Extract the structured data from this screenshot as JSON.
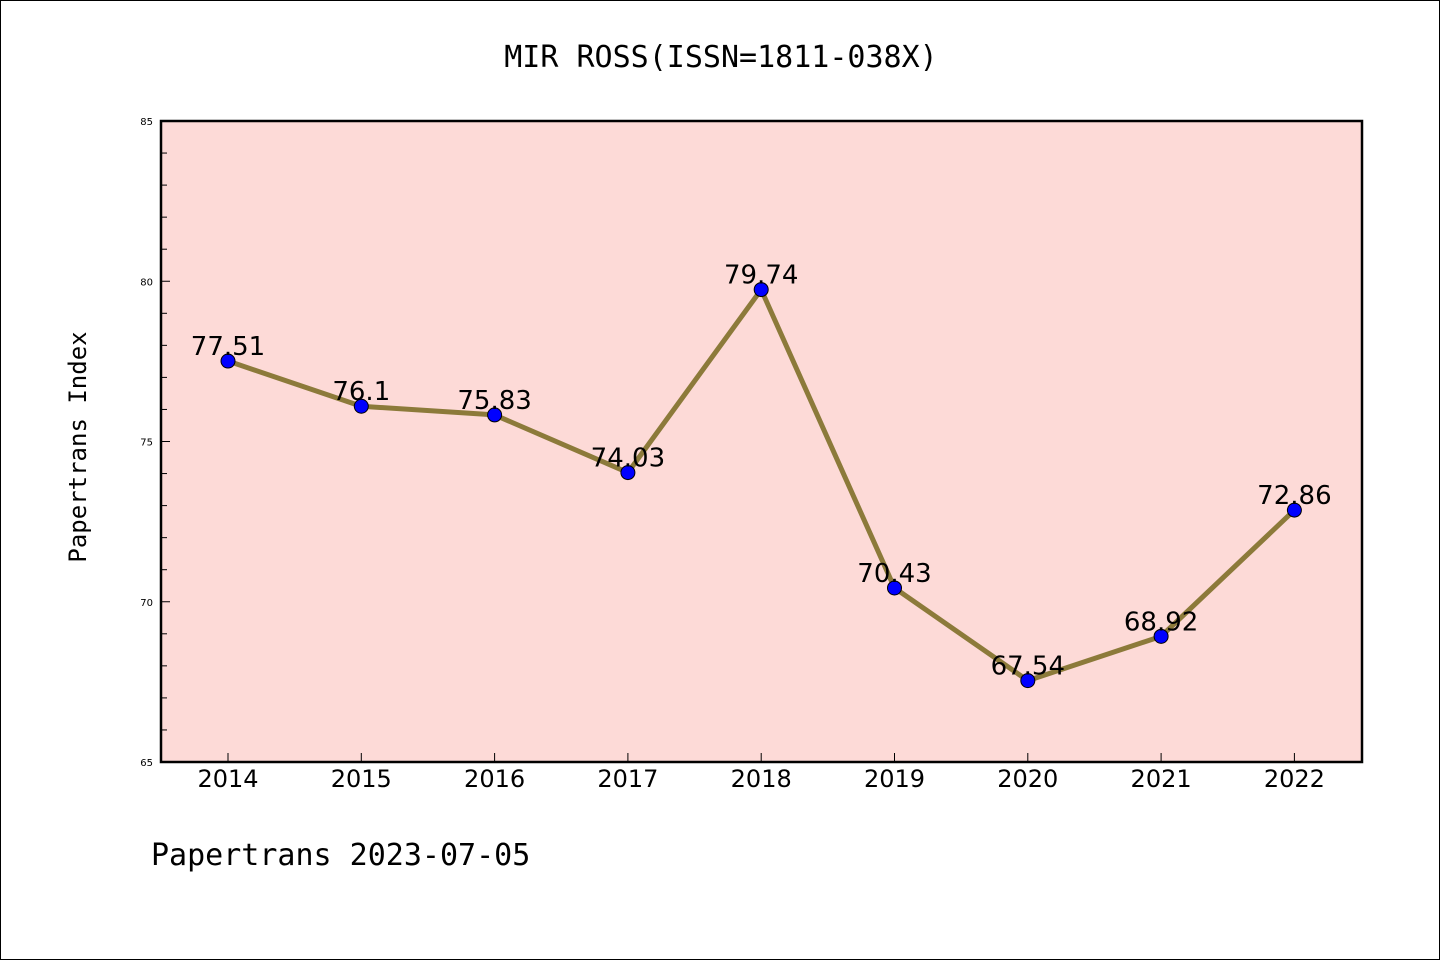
{
  "chart_data": {
    "type": "line",
    "title": "MIR ROSS(ISSN=1811-038X)",
    "xlabel": "",
    "ylabel": "Papertrans Index",
    "categories": [
      "2014",
      "2015",
      "2016",
      "2017",
      "2018",
      "2019",
      "2020",
      "2021",
      "2022"
    ],
    "values": [
      77.51,
      76.1,
      75.83,
      74.03,
      79.74,
      70.43,
      67.54,
      68.92,
      72.86
    ],
    "data_labels": [
      "77.51",
      "76.1",
      "75.83",
      "74.03",
      "79.74",
      "70.43",
      "67.54",
      "68.92",
      "72.86"
    ],
    "ylim": [
      65,
      85
    ],
    "yticks": [
      "65",
      "70",
      "75",
      "80",
      "85"
    ],
    "grid": false,
    "colors": {
      "plot_background": "#fddad7",
      "line": "#8c7a3a",
      "marker": "#0000ff"
    }
  },
  "footer": "Papertrans 2023-07-05"
}
